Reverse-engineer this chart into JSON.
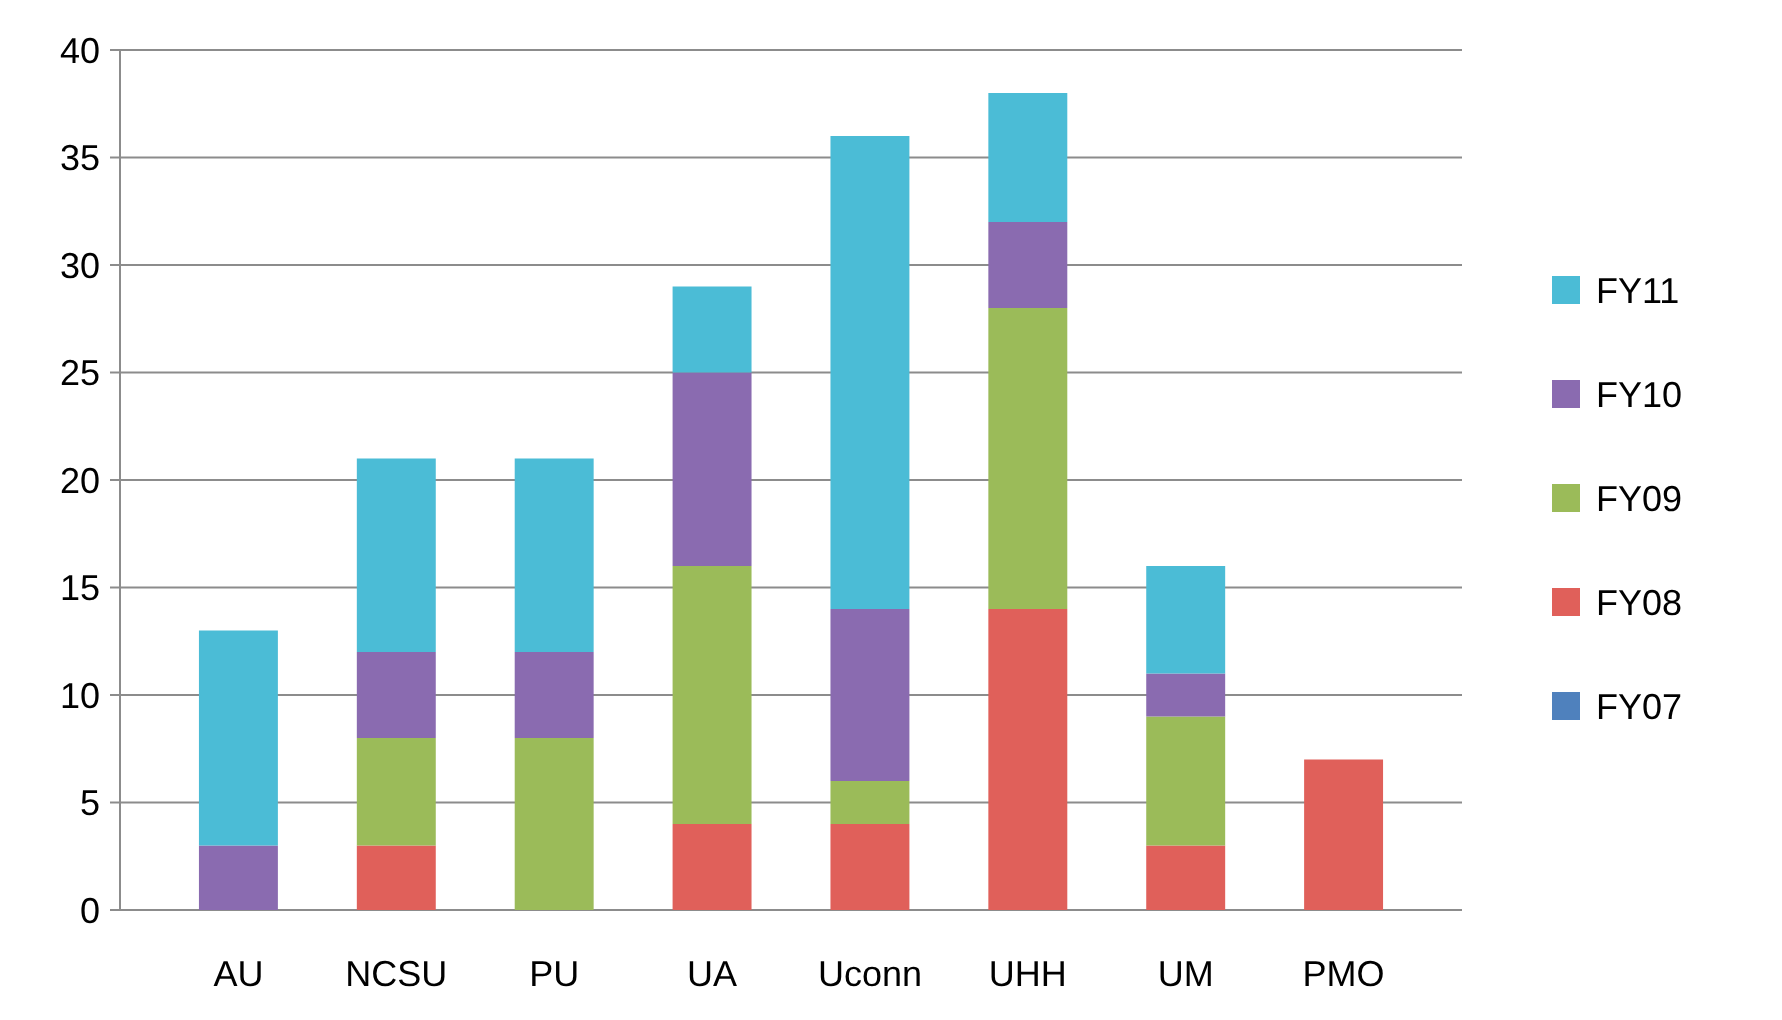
{
  "chart_data": {
    "type": "bar",
    "stacked": true,
    "categories": [
      "AU",
      "NCSU",
      "PU",
      "UA",
      "Uconn",
      "UHH",
      "UM",
      "PMO"
    ],
    "series": [
      {
        "name": "FY07",
        "color": "#4f81bd",
        "values": [
          0,
          0,
          0,
          0,
          0,
          0,
          0,
          0
        ]
      },
      {
        "name": "FY08",
        "color": "#e0605a",
        "values": [
          0,
          3,
          0,
          4,
          4,
          14,
          3,
          7
        ]
      },
      {
        "name": "FY09",
        "color": "#9bbb59",
        "values": [
          0,
          5,
          8,
          12,
          2,
          14,
          6,
          0
        ]
      },
      {
        "name": "FY10",
        "color": "#8a6bb0",
        "values": [
          3,
          4,
          4,
          9,
          8,
          4,
          2,
          0
        ]
      },
      {
        "name": "FY11",
        "color": "#4bbcd6",
        "values": [
          10,
          9,
          9,
          4,
          22,
          6,
          5,
          0
        ]
      }
    ],
    "ylim": [
      0,
      40
    ],
    "yticks": [
      0,
      5,
      10,
      15,
      20,
      25,
      30,
      35,
      40
    ],
    "grid": "y",
    "legend": "right"
  }
}
